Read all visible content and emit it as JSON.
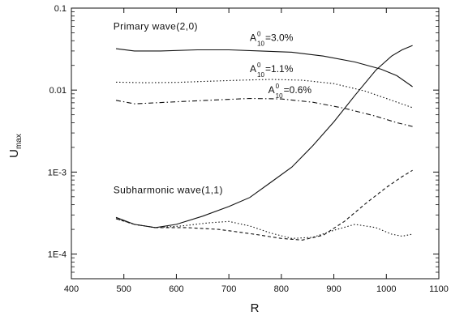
{
  "chart_data": {
    "type": "line",
    "xlabel": "R",
    "ylabel": "U",
    "ylabel_sub": "max",
    "xlim": [
      400,
      1100
    ],
    "ylim": [
      5e-05,
      0.1
    ],
    "yscale": "log",
    "x_ticks": [
      400,
      500,
      600,
      700,
      800,
      900,
      1000,
      1100
    ],
    "y_ticks": [
      {
        "value": 0.0001,
        "label": "1E-4"
      },
      {
        "value": 0.001,
        "label": "1E-3"
      },
      {
        "value": 0.01,
        "label": "0.01"
      },
      {
        "value": 0.1,
        "label": "0.1"
      }
    ],
    "grid": false,
    "annotations": [
      {
        "text": "Primary wave(2,0)",
        "x": 480,
        "y": 0.055
      },
      {
        "text": "Subharmonic wave(1,1)",
        "x": 480,
        "y": 0.00055
      }
    ],
    "amplitude_labels": [
      {
        "base": "A",
        "sup": "0",
        "sub": "10",
        "value": "=3.0%",
        "x": 740,
        "y": 0.04
      },
      {
        "base": "A",
        "sup": "0",
        "sub": "10",
        "value": "=1.1%",
        "x": 740,
        "y": 0.0165
      },
      {
        "base": "A",
        "sup": "0",
        "sub": "10",
        "value": "=0.6%",
        "x": 775,
        "y": 0.0092
      }
    ],
    "series": [
      {
        "group": "primary",
        "case": "=3.0%",
        "style": "solid",
        "x": [
          485,
          520,
          570,
          640,
          700,
          760,
          820,
          880,
          940,
          990,
          1020,
          1050
        ],
        "y": [
          0.032,
          0.03,
          0.03,
          0.031,
          0.031,
          0.03,
          0.029,
          0.026,
          0.022,
          0.018,
          0.015,
          0.011
        ]
      },
      {
        "group": "primary",
        "case": "=1.1%",
        "style": "dotted",
        "x": [
          485,
          540,
          600,
          660,
          720,
          780,
          840,
          900,
          960,
          1010,
          1050
        ],
        "y": [
          0.0125,
          0.0123,
          0.0124,
          0.0128,
          0.0132,
          0.0135,
          0.0132,
          0.012,
          0.0097,
          0.0075,
          0.0061
        ]
      },
      {
        "group": "primary",
        "case": "=0.6%",
        "style": "dashdot",
        "x": [
          485,
          520,
          560,
          620,
          680,
          740,
          800,
          860,
          920,
          980,
          1020,
          1050
        ],
        "y": [
          0.0075,
          0.0068,
          0.007,
          0.0073,
          0.0076,
          0.0079,
          0.0078,
          0.0071,
          0.006,
          0.0048,
          0.004,
          0.0036
        ]
      },
      {
        "group": "subharmonic",
        "case": "=3.0%",
        "style": "solid",
        "x": [
          485,
          520,
          560,
          600,
          650,
          700,
          740,
          780,
          820,
          860,
          900,
          940,
          980,
          1010,
          1030,
          1050
        ],
        "y": [
          0.00028,
          0.00023,
          0.00021,
          0.00023,
          0.00029,
          0.00038,
          0.00049,
          0.00075,
          0.00115,
          0.0021,
          0.0041,
          0.0086,
          0.0175,
          0.026,
          0.031,
          0.035
        ]
      },
      {
        "group": "subharmonic",
        "case": "=1.1%",
        "style": "dashed",
        "x": [
          485,
          520,
          560,
          620,
          680,
          720,
          760,
          800,
          840,
          880,
          920,
          960,
          1000,
          1030,
          1050
        ],
        "y": [
          0.00027,
          0.00023,
          0.00021,
          0.00021,
          0.0002,
          0.000185,
          0.00017,
          0.000155,
          0.000148,
          0.00017,
          0.00025,
          0.00041,
          0.00065,
          0.00088,
          0.00105
        ]
      },
      {
        "group": "subharmonic",
        "case": "=0.6%",
        "style": "dotted",
        "x": [
          485,
          520,
          560,
          610,
          660,
          700,
          740,
          780,
          820,
          860,
          900,
          940,
          980,
          1010,
          1030,
          1050
        ],
        "y": [
          0.00027,
          0.00023,
          0.00021,
          0.00022,
          0.00024,
          0.00025,
          0.00022,
          0.00018,
          0.000155,
          0.00016,
          0.000195,
          0.00023,
          0.00021,
          0.000175,
          0.000165,
          0.000175
        ]
      }
    ]
  }
}
